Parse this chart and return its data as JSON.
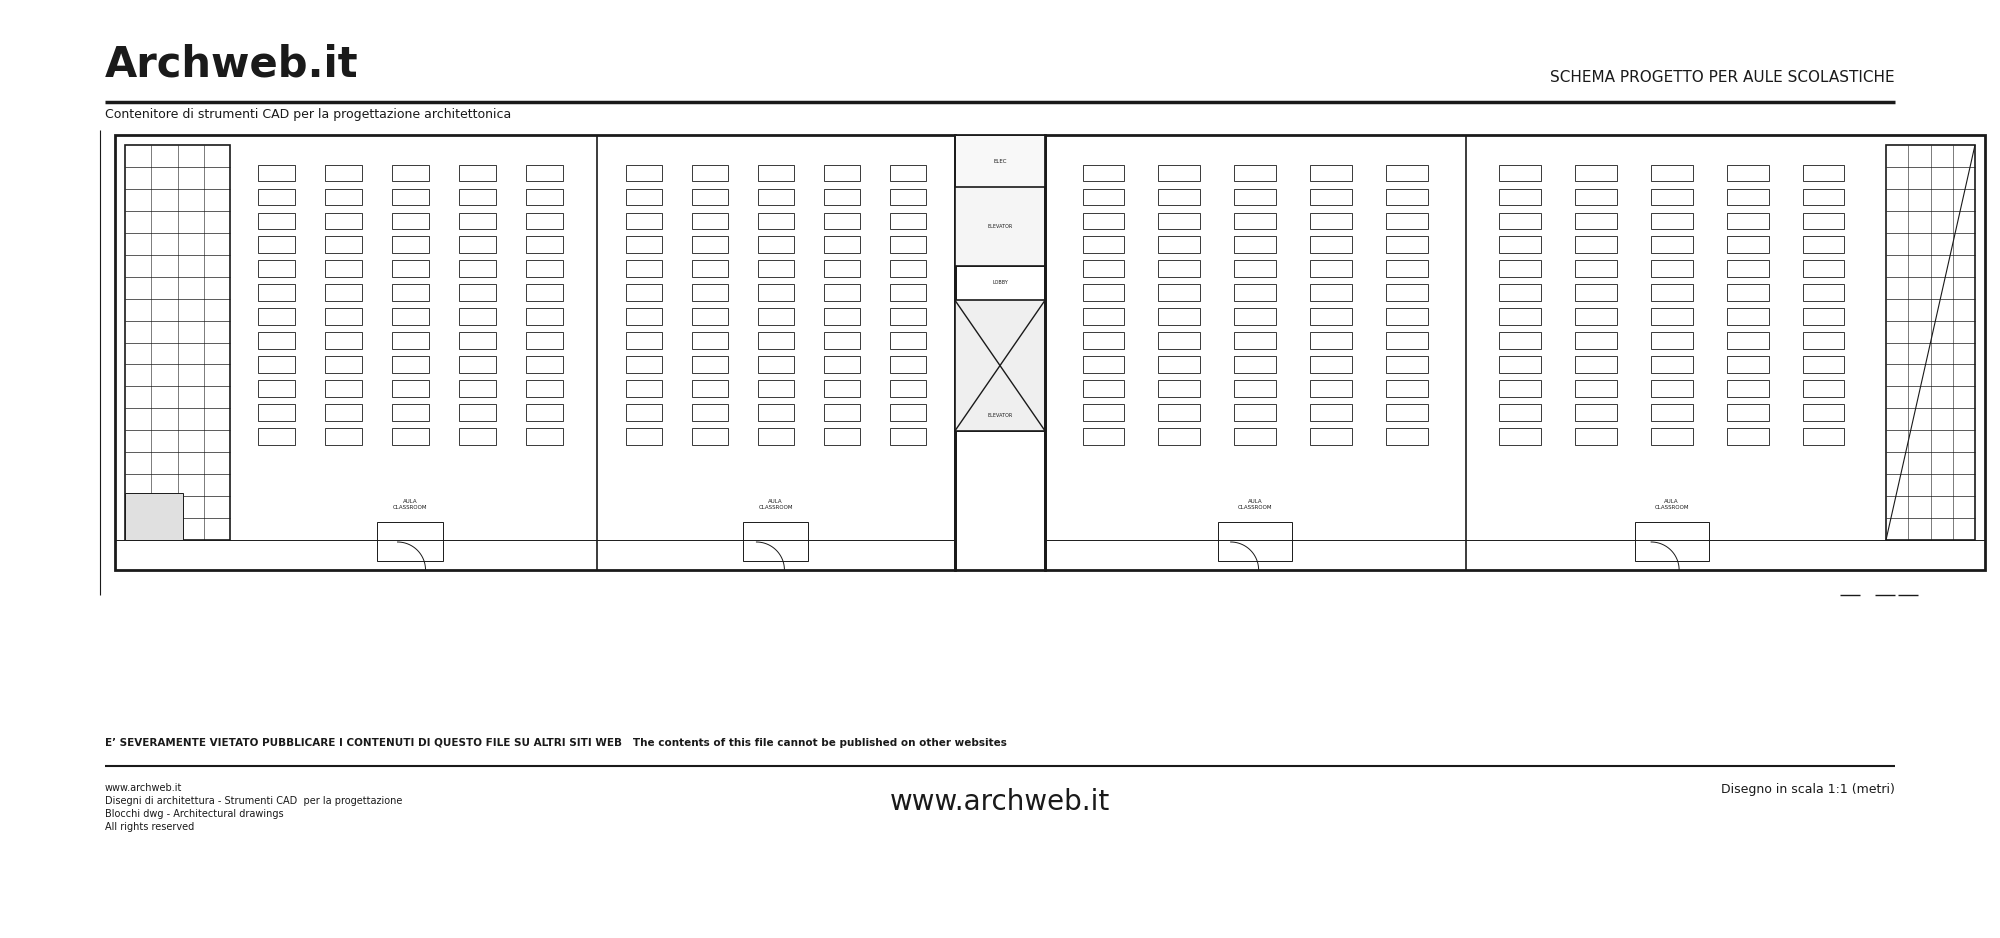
{
  "title": "Archweb.it",
  "subtitle": "Contenitore di strumenti CAD per la progettazione architettonica",
  "header_right": "SCHEMA PROGETTO PER AULE SCOLASTICHE",
  "footer_warning": "E’ SEVERAMENTE VIETATO PUBBLICARE I CONTENUTI DI QUESTO FILE SU ALTRI SITI WEB   The contents of this file cannot be published on other websites",
  "footer_left1": "www.archweb.it",
  "footer_left2": "Disegni di architettura - Strumenti CAD  per la progettazione",
  "footer_left3": "Blocchi dwg - Architectural drawings",
  "footer_left4": "All rights reserved",
  "footer_center": "www.archweb.it",
  "footer_right": "Disegno in scala 1:1 (metri)",
  "bg_color": "#ffffff",
  "line_color": "#1a1a1a",
  "text_color": "#1a1a1a"
}
